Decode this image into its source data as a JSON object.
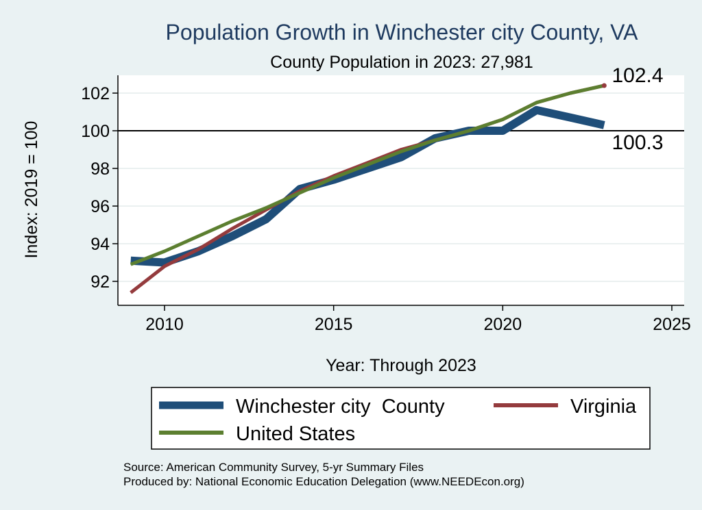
{
  "chart_data": {
    "type": "line",
    "title": "Population Growth in Winchester city County, VA",
    "subtitle": "County Population in 2023: 27,981",
    "xlabel": "Year: Through 2023",
    "ylabel": "Index: 2019 = 100",
    "xlim": [
      2009,
      2025
    ],
    "ylim": [
      91,
      103
    ],
    "xticks": [
      "2010",
      "2015",
      "2020",
      "2025"
    ],
    "yticks": [
      "92",
      "94",
      "96",
      "98",
      "100",
      "102"
    ],
    "reference_line_y": 100,
    "grid": true,
    "legend_position": "bottom",
    "x": [
      2009,
      2010,
      2011,
      2012,
      2013,
      2014,
      2015,
      2016,
      2017,
      2018,
      2019,
      2020,
      2021,
      2022,
      2023
    ],
    "series": [
      {
        "name": "Winchester city  County",
        "color": "#1f4e79",
        "values": [
          93.1,
          93.0,
          93.6,
          94.4,
          95.3,
          96.9,
          97.4,
          98.0,
          98.6,
          99.6,
          100.0,
          100.0,
          101.1,
          100.7,
          100.3
        ]
      },
      {
        "name": "Virginia",
        "color": "#943b3d",
        "values": [
          91.4,
          92.8,
          93.7,
          94.8,
          95.8,
          96.8,
          97.6,
          98.3,
          99.0,
          99.5,
          100.0,
          100.6,
          101.5,
          102.0,
          102.4
        ]
      },
      {
        "name": "United States",
        "color": "#5c7f30",
        "values": [
          92.9,
          93.6,
          94.4,
          95.2,
          95.9,
          96.7,
          97.5,
          98.2,
          98.9,
          99.5,
          100.0,
          100.6,
          101.5,
          102.0,
          102.4
        ]
      }
    ],
    "end_labels": [
      "102.4",
      "100.3"
    ]
  },
  "notes": {
    "source": "Source: American Community Survey, 5-yr Summary Files",
    "produced_by": "Produced by: National Economic Education Delegation (www.NEEDEcon.org)"
  }
}
